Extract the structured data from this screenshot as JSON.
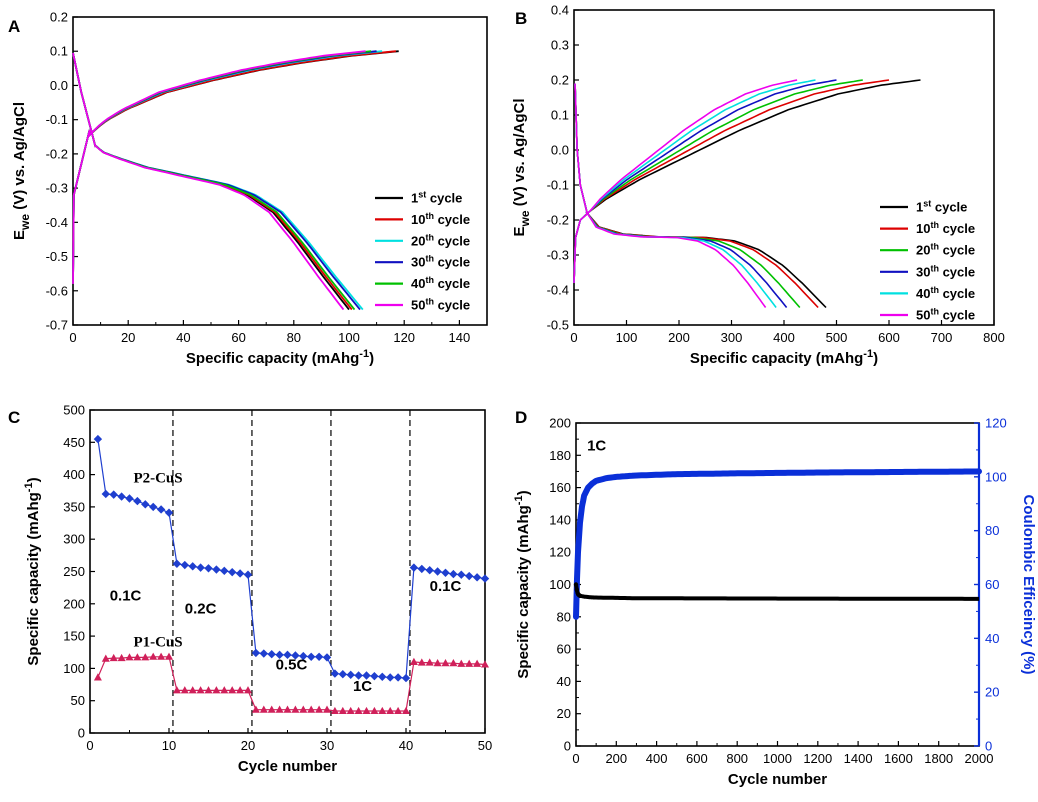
{
  "figure": {
    "panel_labels": [
      "A",
      "B",
      "C",
      "D"
    ]
  },
  "chart_data": [
    {
      "panel": "A",
      "type": "line",
      "xlabel": "Specific capacity (mAhg",
      "xlabel_sup": "-1",
      "xlabel_close": ")",
      "ylabel": "E",
      "ylabel_sub": "we",
      "ylabel_rest": " (V) vs. Ag/AgCl",
      "xlim": [
        0,
        150
      ],
      "ylim": [
        -0.7,
        0.2
      ],
      "xticks": [
        0,
        20,
        40,
        60,
        80,
        100,
        120,
        140
      ],
      "yticks": [
        -0.7,
        -0.6,
        -0.5,
        -0.4,
        -0.3,
        -0.2,
        -0.1,
        0.0,
        0.1,
        0.2
      ],
      "ytick_labels": [
        "-0.7",
        "-0.6",
        "-0.5",
        "-0.4",
        "-0.3",
        "-0.2",
        "-0.1",
        "0.0",
        "0.1",
        "0.2"
      ],
      "legend_position": "lower-right",
      "series": [
        {
          "num": "1",
          "sup": "st",
          "text": " cycle",
          "color": "#000000",
          "charge_end": 118,
          "discharge_end": 100
        },
        {
          "num": "10",
          "sup": "th",
          "text": " cycle",
          "color": "#dd0000",
          "charge_end": 117,
          "discharge_end": 101
        },
        {
          "num": "20",
          "sup": "th",
          "text": " cycle",
          "color": "#00e0e0",
          "charge_end": 112,
          "discharge_end": 105
        },
        {
          "num": "30",
          "sup": "th",
          "text": " cycle",
          "color": "#1010c0",
          "charge_end": 110,
          "discharge_end": 104
        },
        {
          "num": "40",
          "sup": "th",
          "text": " cycle",
          "color": "#00c000",
          "charge_end": 108,
          "discharge_end": 102
        },
        {
          "num": "50",
          "sup": "th",
          "text": " cycle",
          "color": "#ee00ee",
          "charge_end": 106,
          "discharge_end": 98
        }
      ]
    },
    {
      "panel": "B",
      "type": "line",
      "xlabel": "Specific capacity (mAhg",
      "xlabel_sup": "-1",
      "xlabel_close": ")",
      "ylabel": "E",
      "ylabel_sub": "we",
      "ylabel_rest": " (V) vs. Ag/AgCl",
      "xlim": [
        0,
        800
      ],
      "ylim": [
        -0.5,
        0.4
      ],
      "xticks": [
        0,
        100,
        200,
        300,
        400,
        500,
        600,
        700,
        800
      ],
      "yticks": [
        -0.5,
        -0.4,
        -0.3,
        -0.2,
        -0.1,
        0.0,
        0.1,
        0.2,
        0.3,
        0.4
      ],
      "ytick_labels": [
        "-0.5",
        "-0.4",
        "-0.3",
        "-0.2",
        "-0.1",
        "0.0",
        "0.1",
        "0.2",
        "0.3",
        "0.4"
      ],
      "legend_position": "lower-right",
      "series": [
        {
          "num": "1",
          "sup": "st",
          "text": " cycle",
          "color": "#000000",
          "charge_end": 660,
          "discharge_end": 480
        },
        {
          "num": "10",
          "sup": "th",
          "text": " cycle",
          "color": "#dd0000",
          "charge_end": 600,
          "discharge_end": 465
        },
        {
          "num": "20",
          "sup": "th",
          "text": " cycle",
          "color": "#00c000",
          "charge_end": 550,
          "discharge_end": 430
        },
        {
          "num": "30",
          "sup": "th",
          "text": " cycle",
          "color": "#1010c0",
          "charge_end": 500,
          "discharge_end": 405
        },
        {
          "num": "40",
          "sup": "th",
          "text": " cycle",
          "color": "#00e0e0",
          "charge_end": 460,
          "discharge_end": 385
        },
        {
          "num": "50",
          "sup": "th",
          "text": " cycle",
          "color": "#ee00ee",
          "charge_end": 425,
          "discharge_end": 365
        }
      ]
    },
    {
      "panel": "C",
      "type": "scatter",
      "xlabel": "Cycle number",
      "ylabel": "Specific capacity (mAhg",
      "ylabel_sup": "-1",
      "ylabel_close": ")",
      "xlim": [
        0,
        50
      ],
      "ylim": [
        0,
        500
      ],
      "xticks": [
        0,
        10,
        20,
        30,
        40,
        50
      ],
      "yticks": [
        0,
        50,
        100,
        150,
        200,
        250,
        300,
        350,
        400,
        450,
        500
      ],
      "rate_boundaries": [
        10.5,
        20.5,
        30.5,
        40.5
      ],
      "rate_labels": [
        {
          "text": "0.1C",
          "x": 4.5,
          "y": 205
        },
        {
          "text": "0.2C",
          "x": 14,
          "y": 185
        },
        {
          "text": "0.5C",
          "x": 25.5,
          "y": 98
        },
        {
          "text": "1C",
          "x": 34.5,
          "y": 65
        },
        {
          "text": "0.1C",
          "x": 45,
          "y": 220
        }
      ],
      "series": [
        {
          "name": "P2-CuS",
          "color": "#1f3fcf",
          "marker": "diamond",
          "label_x": 5.5,
          "label_y": 388,
          "x": [
            1,
            2,
            3,
            4,
            5,
            6,
            7,
            8,
            9,
            10,
            11,
            12,
            13,
            14,
            15,
            16,
            17,
            18,
            19,
            20,
            21,
            22,
            23,
            24,
            25,
            26,
            27,
            28,
            29,
            30,
            31,
            32,
            33,
            34,
            35,
            36,
            37,
            38,
            39,
            40,
            41,
            42,
            43,
            44,
            45,
            46,
            47,
            48,
            49,
            50
          ],
          "y": [
            455,
            370,
            369,
            366,
            363,
            359,
            354,
            350,
            346,
            341,
            262,
            260,
            258,
            256,
            255,
            253,
            251,
            249,
            247,
            245,
            124,
            123,
            122,
            121,
            121,
            120,
            119,
            118,
            118,
            117,
            92,
            91,
            90,
            89,
            89,
            88,
            87,
            86,
            86,
            85,
            256,
            254,
            252,
            250,
            248,
            246,
            245,
            243,
            241,
            239
          ]
        },
        {
          "name": "P1-CuS",
          "color": "#d0205a",
          "marker": "triangle",
          "label_x": 5.5,
          "label_y": 134,
          "x": [
            1,
            2,
            3,
            4,
            5,
            6,
            7,
            8,
            9,
            10,
            11,
            12,
            13,
            14,
            15,
            16,
            17,
            18,
            19,
            20,
            21,
            22,
            23,
            24,
            25,
            26,
            27,
            28,
            29,
            30,
            31,
            32,
            33,
            34,
            35,
            36,
            37,
            38,
            39,
            40,
            41,
            42,
            43,
            44,
            45,
            46,
            47,
            48,
            49,
            50
          ],
          "y": [
            86,
            115,
            116,
            116,
            117,
            117,
            117,
            118,
            118,
            118,
            66,
            66,
            66,
            66,
            66,
            66,
            66,
            66,
            66,
            66,
            36,
            36,
            36,
            36,
            36,
            36,
            36,
            36,
            36,
            36,
            34,
            34,
            34,
            34,
            34,
            34,
            34,
            34,
            34,
            34,
            110,
            109,
            109,
            108,
            108,
            108,
            107,
            107,
            107,
            106
          ]
        }
      ]
    },
    {
      "panel": "D",
      "type": "scatter",
      "xlabel": "Cycle number",
      "ylabel": "Specific capacity (mAhg",
      "ylabel_sup": "-1",
      "ylabel_close": ")",
      "y2label": "Coulombic Efficeincy (%)",
      "annotation": "1C",
      "xlim": [
        0,
        2000
      ],
      "ylim": [
        0,
        200
      ],
      "y2lim": [
        0,
        120
      ],
      "xticks": [
        0,
        200,
        400,
        600,
        800,
        1000,
        1200,
        1400,
        1600,
        1800,
        2000
      ],
      "yticks": [
        0,
        20,
        40,
        60,
        80,
        100,
        120,
        140,
        160,
        180,
        200
      ],
      "y2ticks": [
        0,
        20,
        40,
        60,
        80,
        100,
        120
      ],
      "series": [
        {
          "name": "Specific capacity",
          "axis": "left",
          "color": "#000000",
          "x": [
            0,
            5,
            10,
            20,
            40,
            80,
            150,
            300,
            600,
            1000,
            1500,
            2000
          ],
          "y": [
            100,
            96,
            94,
            93,
            92.5,
            92,
            91.8,
            91.5,
            91.4,
            91.3,
            91.2,
            91.1
          ]
        },
        {
          "name": "Coulombic efficiency",
          "axis": "right",
          "color": "#0a2fd8",
          "x": [
            0,
            5,
            10,
            20,
            30,
            40,
            60,
            80,
            100,
            150,
            200,
            300,
            500,
            800,
            1200,
            1600,
            2000
          ],
          "y": [
            48,
            62,
            72,
            83,
            89,
            93,
            96,
            97.5,
            98.5,
            99.5,
            100,
            100.5,
            101,
            101.3,
            101.6,
            101.8,
            102
          ]
        }
      ]
    }
  ]
}
